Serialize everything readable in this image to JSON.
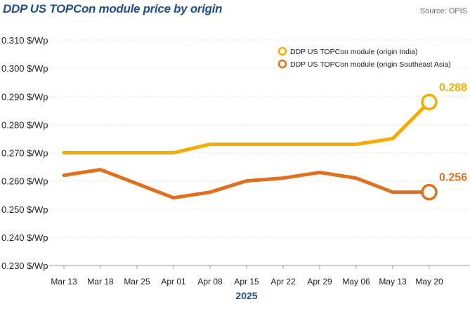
{
  "header": {
    "title": "DDP US TOPCon module price by origin",
    "source": "Source: OPIS"
  },
  "colors": {
    "series_india": "#f5ab00",
    "series_sea": "#e0701e",
    "title": "#1f4e8c",
    "grid": "#d9d9d9"
  },
  "chart_data": {
    "type": "line",
    "title": "DDP US TOPCon module price by origin",
    "xlabel": "2025",
    "ylabel": "",
    "categories": [
      "Mar 13",
      "Mar 18",
      "Mar 25",
      "Apr 01",
      "Apr 08",
      "Apr 15",
      "Apr 22",
      "Apr 29",
      "May 06",
      "May 13",
      "May 20"
    ],
    "ylim": [
      0.23,
      0.31
    ],
    "y_ticks": [
      0.31,
      0.3,
      0.29,
      0.28,
      0.27,
      0.26,
      0.25,
      0.24,
      0.23
    ],
    "y_tick_labels": [
      "0.310 $/Wp",
      "0.300 $/Wp",
      "0.290 $/Wp",
      "0.280 $/Wp",
      "0.270 $/Wp",
      "0.260 $/Wp",
      "0.250 $/Wp",
      "0.240 $/Wp",
      "0.230 $/Wp"
    ],
    "grid": true,
    "legend_position": "top-right",
    "series": [
      {
        "name": "DDP US TOPCon module (origin India)",
        "values": [
          0.27,
          0.27,
          0.27,
          0.27,
          0.273,
          0.273,
          0.273,
          0.273,
          0.273,
          0.275,
          0.288
        ],
        "end_label": "0.288"
      },
      {
        "name": "DDP US TOPCon module (origin Southeast Asia)",
        "values": [
          0.262,
          0.264,
          0.259,
          0.254,
          0.256,
          0.26,
          0.261,
          0.263,
          0.261,
          0.256,
          0.256
        ],
        "end_label": "0.256"
      }
    ]
  }
}
